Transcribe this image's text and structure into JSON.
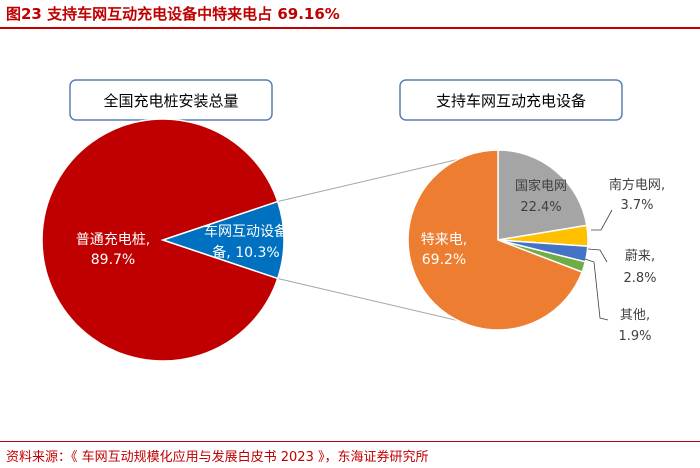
{
  "figure": {
    "title": "图23  支持车网互动充电设备中特来电占 69.16%",
    "source": "资料来源：《 车网互动规模化应用与发展白皮书 2023 》，东海证券研究所"
  },
  "colors": {
    "accent": "#c00000",
    "box_border": "#5b7fb0",
    "connector": "#a6a6a6",
    "label_dark": "#404040",
    "label_light": "#ffffff"
  },
  "chart_data": [
    {
      "type": "pie",
      "title": "全国充电桩安装总量",
      "slices": [
        {
          "name": "普通充电桩",
          "value": 89.7,
          "label": "89.7%",
          "color": "#c00000"
        },
        {
          "name": "车网互动设备",
          "value": 10.3,
          "label": "10.3%",
          "color": "#0070c0"
        }
      ]
    },
    {
      "type": "pie",
      "title": "支持车网互动充电设备",
      "slices": [
        {
          "name": "国家电网",
          "value": 22.4,
          "label": "22.4%",
          "color": "#a5a5a5"
        },
        {
          "name": "南方电网",
          "value": 3.7,
          "label": "3.7%",
          "color": "#ffc000"
        },
        {
          "name": "蔚来",
          "value": 2.8,
          "label": "2.8%",
          "color": "#4472c4"
        },
        {
          "name": "其他",
          "value": 1.9,
          "label": "1.9%",
          "color": "#70ad47"
        },
        {
          "name": "特来电",
          "value": 69.2,
          "label": "69.2%",
          "color": "#ed7d31"
        }
      ]
    }
  ]
}
